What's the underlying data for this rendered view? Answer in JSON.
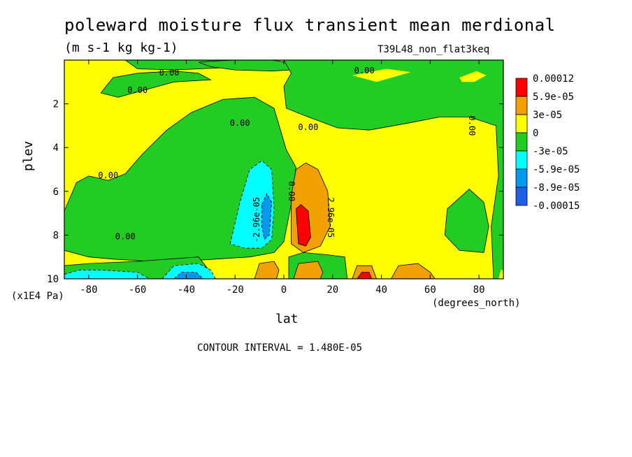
{
  "chart_data": {
    "type": "heatmap",
    "title": "poleward moisture flux transient mean merdional",
    "units": "(m s-1 kg kg-1)",
    "dataset": "T39L48_non_flat3keq",
    "xlabel": "lat",
    "ylabel": "plev",
    "x_unit_note": "(degrees_north)",
    "y_unit_note": "(x1E4 Pa)",
    "contour_interval_text": "CONTOUR INTERVAL = 1.480E-05",
    "xlim": [
      -90,
      90
    ],
    "ylim": [
      10,
      0
    ],
    "x_ticks": [
      -80,
      -60,
      -40,
      -20,
      0,
      20,
      40,
      60,
      80
    ],
    "y_ticks": [
      2,
      4,
      6,
      8,
      10
    ],
    "legend": {
      "placement": "right",
      "labels": [
        "0.00012",
        "5.9e-05",
        "3e-05",
        "0",
        "-3e-05",
        "-5.9e-05",
        "-8.9e-05",
        "-0.00015"
      ],
      "colors": [
        "#ff0000",
        "#f0a000",
        "#ffff00",
        "#22cc22",
        "#00ffff",
        "#0099ee",
        "#1e5fe6"
      ]
    },
    "contour_labels": [
      "0.00",
      "0.00",
      "0.00",
      "0.00",
      "0.00",
      "0.00",
      "0.00",
      "0.00",
      "2.96e-05",
      "-2.96e-05",
      "0.00"
    ],
    "regions": [
      {
        "level": "yellow",
        "poly": [
          [
            -90,
            0
          ],
          [
            90,
            0
          ],
          [
            90,
            10
          ],
          [
            -90,
            10
          ]
        ]
      },
      {
        "level": "green",
        "poly": [
          [
            -90,
            6.9
          ],
          [
            -85,
            5.6
          ],
          [
            -80,
            5.3
          ],
          [
            -72,
            5.5
          ],
          [
            -65,
            5.2
          ],
          [
            -58,
            4.3
          ],
          [
            -48,
            3.2
          ],
          [
            -38,
            2.4
          ],
          [
            -25,
            1.8
          ],
          [
            -12,
            1.7
          ],
          [
            -4,
            2.2
          ],
          [
            1,
            4.1
          ],
          [
            5,
            4.9
          ],
          [
            3,
            6.6
          ],
          [
            0,
            8.3
          ],
          [
            -4,
            8.8
          ],
          [
            -14,
            9.0
          ],
          [
            -28,
            9.1
          ],
          [
            -42,
            9.2
          ],
          [
            -55,
            9.2
          ],
          [
            -70,
            9.1
          ],
          [
            -80,
            9.0
          ],
          [
            -90,
            8.7
          ]
        ]
      },
      {
        "level": "green",
        "poly": [
          [
            -75,
            1.5
          ],
          [
            -70,
            0.8
          ],
          [
            -60,
            0.6
          ],
          [
            -45,
            0.5
          ],
          [
            -35,
            0.6
          ],
          [
            -30,
            0.9
          ],
          [
            -45,
            1.0
          ],
          [
            -58,
            1.4
          ],
          [
            -68,
            1.7
          ]
        ]
      },
      {
        "level": "green",
        "poly": [
          [
            -65,
            0.0
          ],
          [
            -20,
            0.0
          ],
          [
            -25,
            0.35
          ],
          [
            -45,
            0.45
          ],
          [
            -60,
            0.4
          ]
        ]
      },
      {
        "level": "green",
        "poly": [
          [
            -35,
            0.1
          ],
          [
            -30,
            0.05
          ],
          [
            -20,
            0.0
          ],
          [
            -5,
            0.0
          ],
          [
            5,
            0.15
          ],
          [
            10,
            0.4
          ],
          [
            -5,
            0.5
          ],
          [
            -20,
            0.45
          ],
          [
            -30,
            0.3
          ]
        ]
      },
      {
        "level": "green",
        "poly": [
          [
            0,
            0.0
          ],
          [
            90,
            0.0
          ],
          [
            90,
            10
          ],
          [
            86,
            10
          ],
          [
            85,
            7.6
          ],
          [
            88,
            5.3
          ],
          [
            87,
            3.0
          ],
          [
            76,
            2.6
          ],
          [
            64,
            2.6
          ],
          [
            50,
            2.9
          ],
          [
            35,
            3.2
          ],
          [
            22,
            3.1
          ],
          [
            10,
            2.6
          ],
          [
            1,
            2.2
          ],
          [
            0,
            1.2
          ],
          [
            3,
            0.6
          ]
        ]
      },
      {
        "level": "yellow",
        "poly": [
          [
            28,
            0.7
          ],
          [
            42,
            0.4
          ],
          [
            52,
            0.55
          ],
          [
            38,
            1.0
          ]
        ]
      },
      {
        "level": "yellow",
        "poly": [
          [
            72,
            0.8
          ],
          [
            79,
            0.5
          ],
          [
            83,
            0.7
          ],
          [
            78,
            1.0
          ],
          [
            73,
            1.0
          ]
        ]
      },
      {
        "level": "green",
        "poly": [
          [
            67,
            6.8
          ],
          [
            76,
            5.9
          ],
          [
            82,
            6.5
          ],
          [
            84,
            7.6
          ],
          [
            82,
            8.8
          ],
          [
            72,
            8.7
          ],
          [
            66,
            8.0
          ]
        ]
      },
      {
        "level": "green",
        "poly": [
          [
            -90,
            9.4
          ],
          [
            -80,
            9.3
          ],
          [
            -60,
            9.2
          ],
          [
            -35,
            9.0
          ],
          [
            -30,
            9.7
          ],
          [
            -35,
            10
          ],
          [
            -90,
            10
          ]
        ]
      },
      {
        "level": "green",
        "poly": [
          [
            2,
            9.0
          ],
          [
            8,
            8.8
          ],
          [
            18,
            8.9
          ],
          [
            25,
            9.0
          ],
          [
            26,
            10
          ],
          [
            2,
            10
          ]
        ]
      },
      {
        "level": "cyan",
        "poly": [
          [
            -22,
            8.4
          ],
          [
            -18,
            6.5
          ],
          [
            -14,
            5.0
          ],
          [
            -9,
            4.6
          ],
          [
            -5,
            5.0
          ],
          [
            -4,
            6.8
          ],
          [
            -5,
            8.2
          ],
          [
            -9,
            8.6
          ],
          [
            -16,
            8.6
          ]
        ]
      },
      {
        "level": "blue",
        "poly": [
          [
            -9,
            6.6
          ],
          [
            -7,
            6.1
          ],
          [
            -5,
            6.5
          ],
          [
            -6,
            8.0
          ],
          [
            -8,
            8.2
          ],
          [
            -9,
            7.6
          ]
        ]
      },
      {
        "level": "orange",
        "poly": [
          [
            3,
            6.2
          ],
          [
            5,
            5.0
          ],
          [
            9,
            4.7
          ],
          [
            14,
            5.0
          ],
          [
            18,
            6.0
          ],
          [
            19,
            7.6
          ],
          [
            15,
            8.5
          ],
          [
            8,
            8.8
          ],
          [
            3,
            8.4
          ]
        ]
      },
      {
        "level": "red",
        "poly": [
          [
            5,
            6.8
          ],
          [
            7,
            6.6
          ],
          [
            10,
            6.9
          ],
          [
            11,
            8.1
          ],
          [
            9,
            8.5
          ],
          [
            6,
            8.4
          ]
        ]
      },
      {
        "level": "cyan",
        "poly": [
          [
            -90,
            9.8
          ],
          [
            -84,
            9.6
          ],
          [
            -75,
            9.6
          ],
          [
            -60,
            9.7
          ],
          [
            -55,
            10
          ],
          [
            -90,
            10
          ]
        ]
      },
      {
        "level": "cyan",
        "poly": [
          [
            -50,
            10
          ],
          [
            -45,
            9.4
          ],
          [
            -35,
            9.3
          ],
          [
            -30,
            9.6
          ],
          [
            -28,
            10
          ]
        ]
      },
      {
        "level": "blue",
        "poly": [
          [
            -45,
            10
          ],
          [
            -42,
            9.7
          ],
          [
            -36,
            9.7
          ],
          [
            -33,
            10
          ]
        ]
      },
      {
        "level": "orange",
        "poly": [
          [
            -12,
            10
          ],
          [
            -10,
            9.3
          ],
          [
            -4,
            9.2
          ],
          [
            -2,
            9.6
          ],
          [
            -3,
            10
          ]
        ]
      },
      {
        "level": "orange",
        "poly": [
          [
            4,
            10
          ],
          [
            6,
            9.3
          ],
          [
            14,
            9.2
          ],
          [
            16,
            9.7
          ],
          [
            15,
            10
          ]
        ]
      },
      {
        "level": "orange",
        "poly": [
          [
            28,
            10
          ],
          [
            30,
            9.4
          ],
          [
            36,
            9.4
          ],
          [
            38,
            10
          ]
        ]
      },
      {
        "level": "red",
        "poly": [
          [
            30,
            10
          ],
          [
            32,
            9.7
          ],
          [
            35,
            9.7
          ],
          [
            36,
            10
          ]
        ]
      },
      {
        "level": "orange",
        "poly": [
          [
            44,
            10
          ],
          [
            47,
            9.4
          ],
          [
            55,
            9.3
          ],
          [
            60,
            9.7
          ],
          [
            62,
            10
          ]
        ]
      },
      {
        "level": "yellow",
        "poly": [
          [
            88,
            10
          ],
          [
            89,
            9.6
          ],
          [
            90,
            9.6
          ],
          [
            90,
            10
          ]
        ]
      }
    ]
  }
}
